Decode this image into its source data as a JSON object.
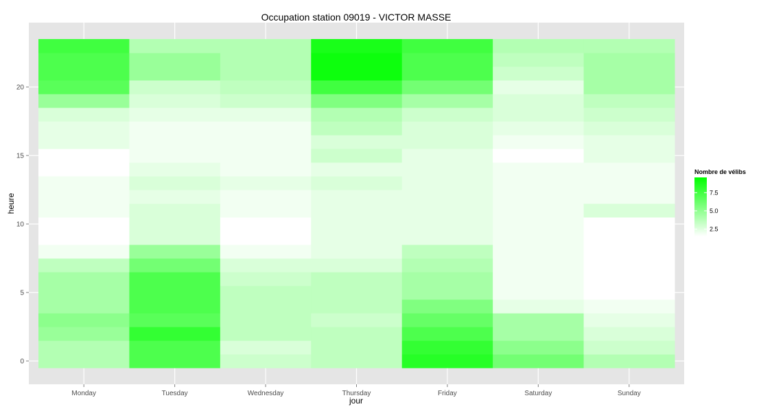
{
  "chart_data": {
    "type": "heatmap",
    "title": "Occupation station 09019 - VICTOR MASSE",
    "xlabel": "jour",
    "ylabel": "heure",
    "x": [
      "Monday",
      "Tuesday",
      "Wednesday",
      "Thursday",
      "Friday",
      "Saturday",
      "Sunday"
    ],
    "y": [
      0,
      1,
      2,
      3,
      4,
      5,
      6,
      7,
      8,
      9,
      10,
      11,
      12,
      13,
      14,
      15,
      16,
      17,
      18,
      19,
      20,
      21,
      22,
      23
    ],
    "y_ticks": [
      0,
      5,
      10,
      15,
      20
    ],
    "ylim": [
      -0.5,
      23.5
    ],
    "grid": true,
    "values": [
      [
        3.0,
        7.0,
        2.0,
        2.5,
        8.5,
        5.5,
        3.0
      ],
      [
        3.0,
        7.0,
        1.5,
        2.5,
        8.0,
        4.5,
        2.0
      ],
      [
        4.0,
        8.0,
        2.5,
        2.5,
        7.0,
        3.5,
        1.5
      ],
      [
        4.5,
        6.5,
        2.5,
        2.0,
        6.0,
        3.5,
        1.0
      ],
      [
        3.5,
        7.0,
        2.5,
        2.5,
        5.0,
        1.0,
        0.5
      ],
      [
        3.5,
        7.0,
        2.5,
        2.5,
        3.5,
        0.5,
        0.0
      ],
      [
        3.5,
        7.0,
        2.0,
        2.5,
        3.5,
        0.5,
        0.0
      ],
      [
        2.5,
        5.5,
        1.5,
        1.5,
        3.0,
        0.5,
        0.0
      ],
      [
        0.5,
        4.0,
        0.5,
        1.0,
        2.5,
        0.5,
        0.0
      ],
      [
        0.0,
        1.5,
        0.0,
        1.0,
        1.0,
        0.5,
        0.0
      ],
      [
        0.0,
        1.5,
        0.0,
        1.0,
        1.0,
        0.5,
        0.0
      ],
      [
        0.5,
        1.5,
        0.5,
        1.0,
        1.0,
        0.5,
        1.5
      ],
      [
        0.5,
        1.0,
        0.5,
        1.0,
        1.0,
        0.5,
        0.5
      ],
      [
        0.5,
        1.5,
        1.0,
        1.5,
        1.0,
        0.5,
        0.5
      ],
      [
        0.0,
        1.0,
        0.5,
        1.0,
        1.0,
        0.5,
        0.5
      ],
      [
        0.0,
        0.5,
        0.5,
        2.0,
        1.0,
        0.0,
        1.0
      ],
      [
        1.0,
        0.5,
        0.5,
        1.5,
        1.5,
        0.5,
        1.0
      ],
      [
        1.0,
        0.5,
        0.5,
        2.5,
        1.5,
        1.0,
        1.5
      ],
      [
        1.5,
        1.0,
        1.0,
        3.0,
        2.0,
        1.5,
        2.0
      ],
      [
        4.0,
        1.5,
        2.0,
        5.0,
        3.5,
        1.5,
        2.5
      ],
      [
        6.5,
        2.0,
        2.5,
        7.5,
        5.5,
        1.0,
        3.5
      ],
      [
        7.0,
        4.0,
        3.0,
        9.5,
        7.0,
        2.0,
        3.5
      ],
      [
        7.0,
        4.0,
        3.0,
        9.5,
        7.0,
        2.5,
        3.5
      ],
      [
        7.5,
        3.0,
        3.0,
        9.0,
        7.5,
        3.0,
        3.0
      ]
    ],
    "colorscale": {
      "low": "#ffffff",
      "high": "#00ff00",
      "min": 0,
      "max": 10
    },
    "legend": {
      "title": "Nombre de vélibs",
      "ticks": [
        2.5,
        5.0,
        7.5
      ],
      "placement": "right"
    }
  }
}
